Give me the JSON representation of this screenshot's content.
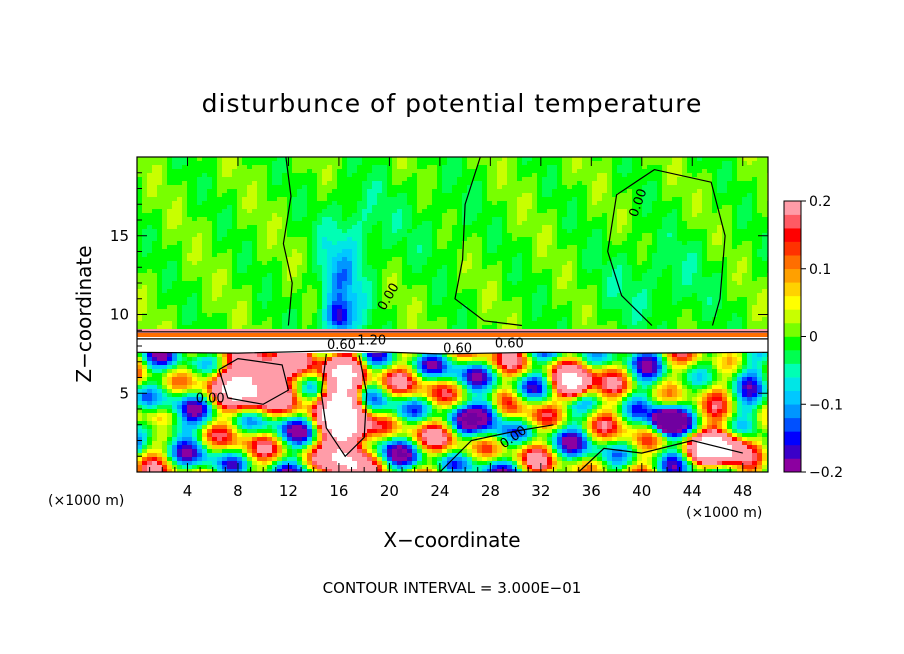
{
  "chart_data": {
    "type": "heatmap",
    "title": "disturbunce of potential temperature",
    "xlabel": "X−coordinate",
    "ylabel": "Z−coordinate",
    "x_unit_label": "(×1000 m)",
    "z_unit_label": "(×1000 m)",
    "x_range": [
      0,
      50
    ],
    "z_range": [
      0,
      20
    ],
    "x_ticks": [
      {
        "value": 4,
        "label": "4"
      },
      {
        "value": 8,
        "label": "8"
      },
      {
        "value": 12,
        "label": "12"
      },
      {
        "value": 16,
        "label": "16"
      },
      {
        "value": 20,
        "label": "20"
      },
      {
        "value": 24,
        "label": "24"
      },
      {
        "value": 28,
        "label": "28"
      },
      {
        "value": 32,
        "label": "32"
      },
      {
        "value": 36,
        "label": "36"
      },
      {
        "value": 40,
        "label": "40"
      },
      {
        "value": 44,
        "label": "44"
      },
      {
        "value": 48,
        "label": "48"
      }
    ],
    "z_ticks": [
      {
        "value": 5,
        "label": "5"
      },
      {
        "value": 10,
        "label": "10"
      },
      {
        "value": 15,
        "label": "15"
      }
    ],
    "colorbar": {
      "range": [
        -0.2,
        0.2
      ],
      "colors": [
        "#8c00a0",
        "#3a00c8",
        "#0000ff",
        "#0050ff",
        "#0096ff",
        "#00c8ff",
        "#00e6e6",
        "#00ffb4",
        "#00ff50",
        "#00ff00",
        "#78ff00",
        "#c8ff00",
        "#ffff00",
        "#ffd200",
        "#ffa000",
        "#ff6e00",
        "#ff3200",
        "#ff0000",
        "#ff5a64",
        "#ff9ca8"
      ],
      "ticks": [
        {
          "value": 0.2,
          "label": "0.2"
        },
        {
          "value": 0.1,
          "label": "0.1"
        },
        {
          "value": 0,
          "label": "0"
        },
        {
          "value": -0.1,
          "label": "−0.1"
        },
        {
          "value": -0.2,
          "label": "−0.2"
        }
      ]
    },
    "contour_labels": [
      {
        "text": "0.00",
        "x": 40,
        "z": 17.0,
        "angle": -70
      },
      {
        "text": "0.00",
        "x": 20.2,
        "z": 11.0,
        "angle": -60
      },
      {
        "text": "0.60",
        "x": 29.5,
        "z": 7.9,
        "angle": 0
      },
      {
        "text": "1.20",
        "x": 18.6,
        "z": 8.1,
        "angle": 0
      },
      {
        "text": "0.60",
        "x": 16.2,
        "z": 7.8,
        "angle": 0
      },
      {
        "text": "0.60",
        "x": 25.4,
        "z": 7.6,
        "angle": 0
      },
      {
        "text": "0.00",
        "x": 30.0,
        "z": 2.0,
        "angle": -35
      },
      {
        "text": "0.00",
        "x": 5.8,
        "z": 4.4,
        "angle": 0
      }
    ],
    "contour_interval_text": "CONTOUR INTERVAL = 3.000E−01"
  }
}
